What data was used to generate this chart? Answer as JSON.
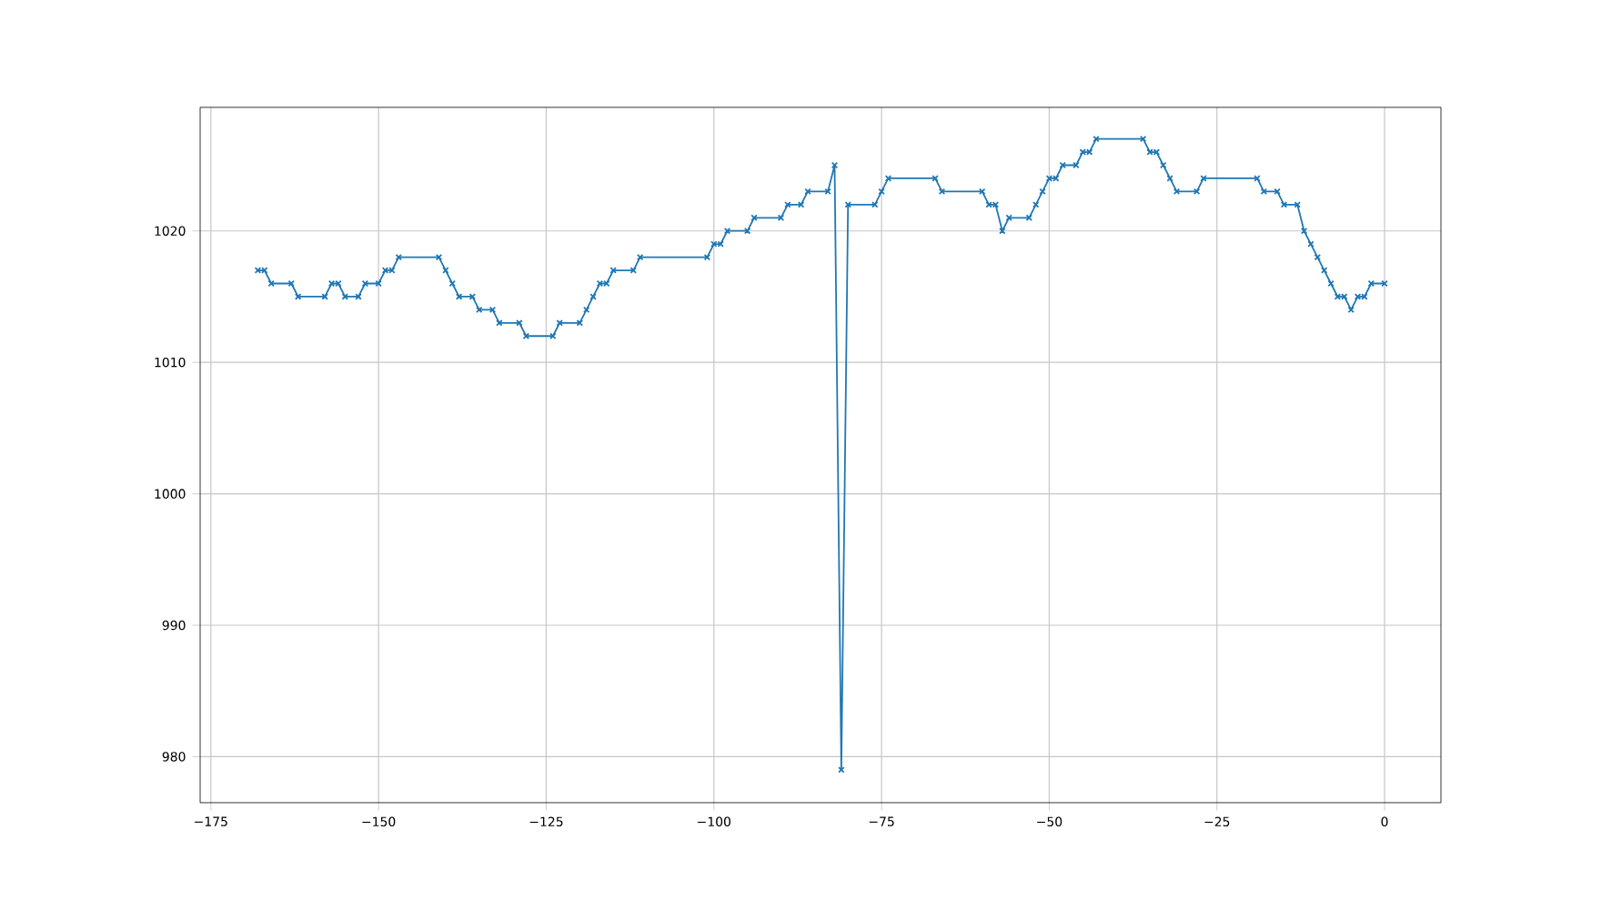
{
  "chart_data": {
    "type": "line",
    "color": "#1f77b4",
    "marker": "cross",
    "grid": true,
    "x": [
      -168,
      -167,
      -166,
      -163,
      -162,
      -158,
      -157,
      -156,
      -155,
      -153,
      -152,
      -150,
      -149,
      -148,
      -147,
      -141,
      -140,
      -139,
      -138,
      -136,
      -135,
      -133,
      -132,
      -129,
      -128,
      -124,
      -123,
      -120,
      -119,
      -118,
      -117,
      -116,
      -115,
      -112,
      -111,
      -101,
      -100,
      -99,
      -98,
      -95,
      -94,
      -90,
      -89,
      -87,
      -86,
      -83,
      -82,
      -81,
      -80,
      -76,
      -75,
      -74,
      -67,
      -66,
      -60,
      -59,
      -58,
      -57,
      -56,
      -53,
      -52,
      -51,
      -50,
      -49,
      -48,
      -46,
      -45,
      -44,
      -43,
      -36,
      -35,
      -34,
      -33,
      -32,
      -31,
      -28,
      -27,
      -19,
      -18,
      -16,
      -15,
      -13,
      -12,
      -11,
      -10,
      -9,
      -8,
      -7,
      -6,
      -5,
      -4,
      -3,
      -2,
      0
    ],
    "values": [
      1017,
      1017,
      1016,
      1016,
      1015,
      1015,
      1016,
      1016,
      1015,
      1015,
      1016,
      1016,
      1017,
      1017,
      1018,
      1018,
      1017,
      1016,
      1015,
      1015,
      1014,
      1014,
      1013,
      1013,
      1012,
      1012,
      1013,
      1013,
      1014,
      1015,
      1016,
      1016,
      1017,
      1017,
      1018,
      1018,
      1019,
      1019,
      1020,
      1020,
      1021,
      1021,
      1022,
      1022,
      1023,
      1023,
      1025,
      979,
      1022,
      1022,
      1023,
      1024,
      1024,
      1023,
      1023,
      1022,
      1022,
      1020,
      1021,
      1021,
      1022,
      1023,
      1024,
      1024,
      1025,
      1025,
      1026,
      1026,
      1027,
      1027,
      1026,
      1026,
      1025,
      1024,
      1023,
      1023,
      1024,
      1024,
      1023,
      1023,
      1022,
      1022,
      1020,
      1019,
      1018,
      1017,
      1016,
      1015,
      1015,
      1014,
      1015,
      1015,
      1016,
      1016
    ],
    "xlim": [
      -176.6,
      8.4
    ],
    "ylim": [
      976.5,
      1029.4
    ],
    "xticks": [
      {
        "value": -175,
        "label": "−175"
      },
      {
        "value": -150,
        "label": "−150"
      },
      {
        "value": -125,
        "label": "−125"
      },
      {
        "value": -100,
        "label": "−100"
      },
      {
        "value": -75,
        "label": "−75"
      },
      {
        "value": -50,
        "label": "−50"
      },
      {
        "value": -25,
        "label": "−25"
      },
      0
    ],
    "yticks": [
      980,
      990,
      1000,
      1010,
      1020
    ]
  }
}
